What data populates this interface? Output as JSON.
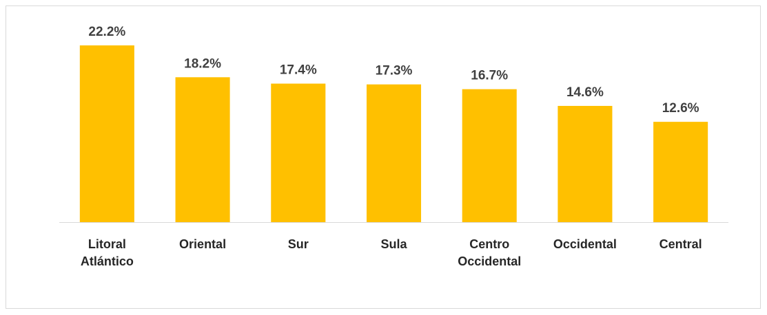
{
  "chart_data": {
    "type": "bar",
    "categories": [
      "Litoral Atlántico",
      "Oriental",
      "Sur",
      "Sula",
      "Centro Occidental",
      "Occidental",
      "Central"
    ],
    "values": [
      22.2,
      18.2,
      17.4,
      17.3,
      16.7,
      14.6,
      12.6
    ],
    "value_labels": [
      "22.2%",
      "18.2%",
      "17.4%",
      "17.3%",
      "16.7%",
      "14.6%",
      "12.6%"
    ],
    "color": "#FFC000"
  }
}
